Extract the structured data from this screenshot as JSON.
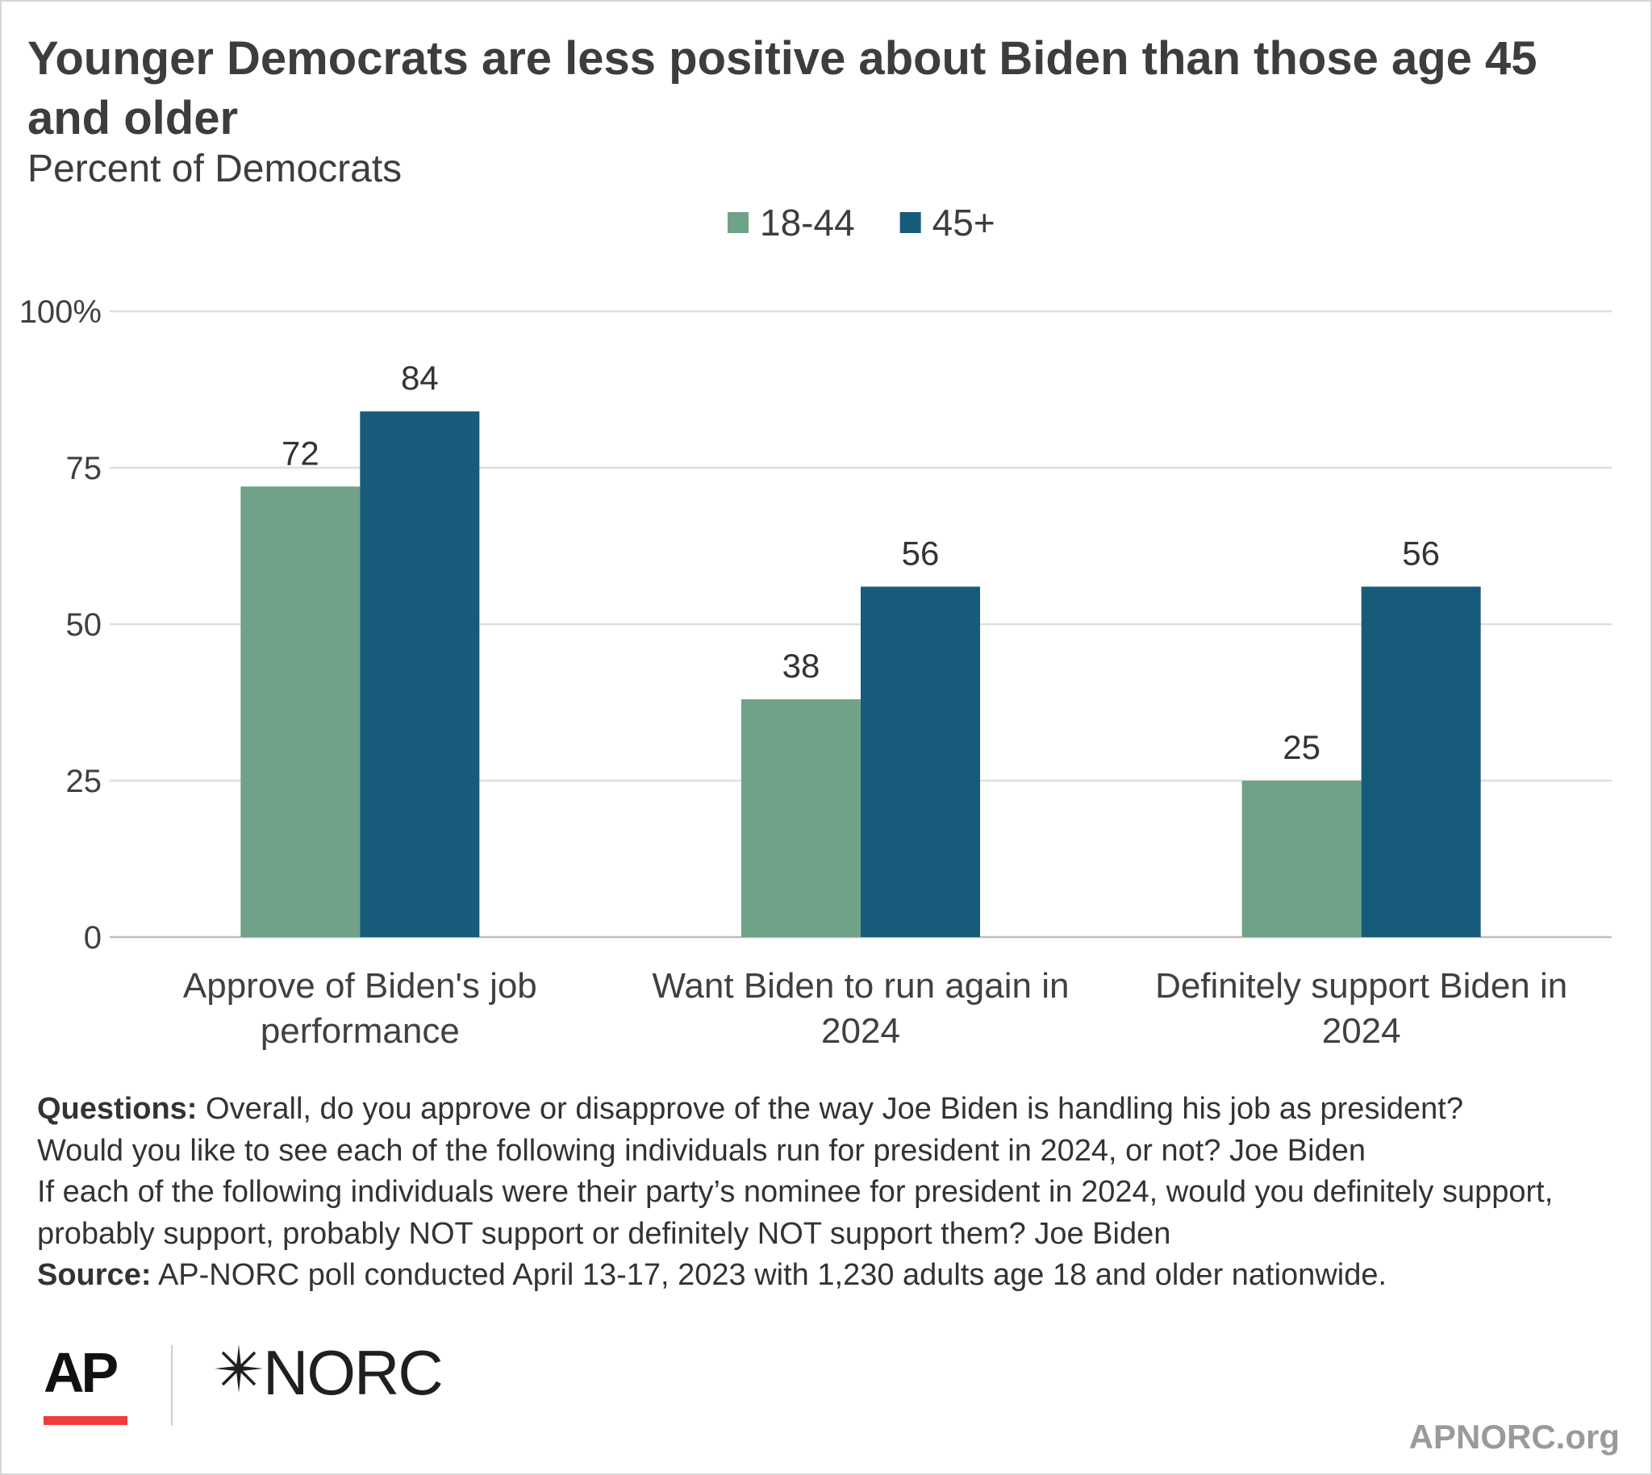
{
  "title": "Younger Democrats are less positive about Biden than those age 45 and older",
  "subtitle": "Percent of Democrats",
  "chart_data": {
    "type": "bar",
    "categories": [
      [
        "Approve of Biden's job",
        "performance"
      ],
      [
        "Want Biden to run again in",
        "2024"
      ],
      [
        "Definitely support Biden in",
        "2024"
      ]
    ],
    "series": [
      {
        "name": "18-44",
        "color": "#70a288",
        "values": [
          72,
          38,
          25
        ]
      },
      {
        "name": "45+",
        "color": "#175b7b",
        "values": [
          84,
          56,
          56
        ]
      }
    ],
    "ylim": [
      0,
      100
    ],
    "yticks": [
      0,
      25,
      50,
      75,
      100
    ],
    "ytick_labels": [
      "0",
      "25",
      "50",
      "75",
      "100%"
    ],
    "grid": true,
    "legend": "top-center"
  },
  "notes": {
    "questions_label": "Questions:",
    "q1": " Overall, do you approve or disapprove of the way Joe Biden is handling his job as president?",
    "q2": "Would you like to see each of the following individuals run for president in 2024, or not? Joe Biden",
    "q3": "If each of the following individuals were their party’s nominee for president in 2024, would you definitely support, probably support, probably NOT support or definitely NOT support them? Joe Biden",
    "source_label": "Source:",
    "source": " AP-NORC poll conducted April 13-17, 2023 with 1,230 adults age 18 and older nationwide."
  },
  "branding": {
    "ap_logo_text": "AP",
    "norc_logo_text": "NORC",
    "site": "APNORC.org"
  }
}
